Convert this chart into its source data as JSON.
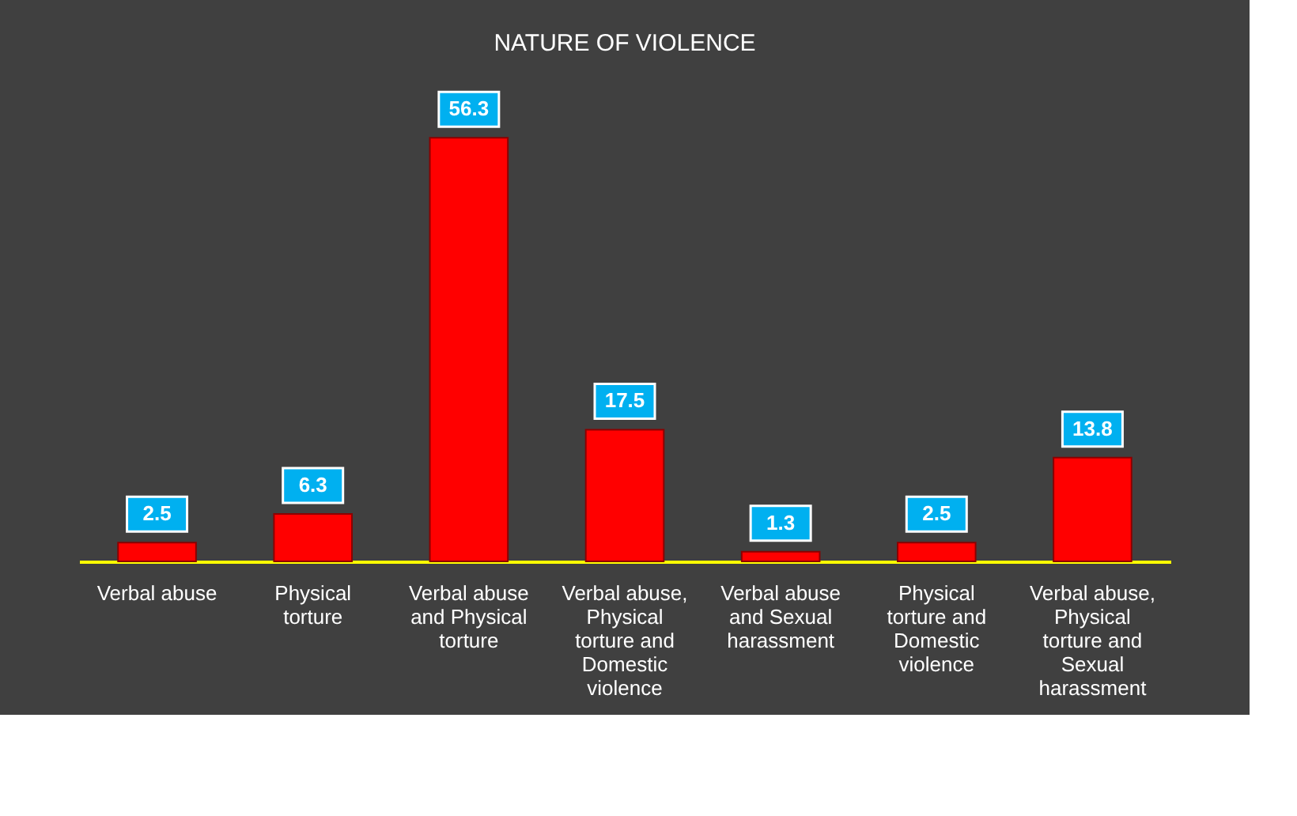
{
  "chart_data": {
    "type": "bar",
    "title": "NATURE OF VIOLENCE",
    "categories": [
      "Verbal abuse",
      "Physical torture",
      "Verbal abuse and Physical torture",
      "Verbal abuse, Physical torture and Domestic violence",
      "Verbal abuse and Sexual harassment",
      "Physical torture and Domestic violence",
      "Verbal abuse, Physical torture and Sexual harassment"
    ],
    "values": [
      2.5,
      6.3,
      56.3,
      17.5,
      1.3,
      2.5,
      13.8
    ],
    "color": "#ff0000",
    "data_labels": true
  }
}
